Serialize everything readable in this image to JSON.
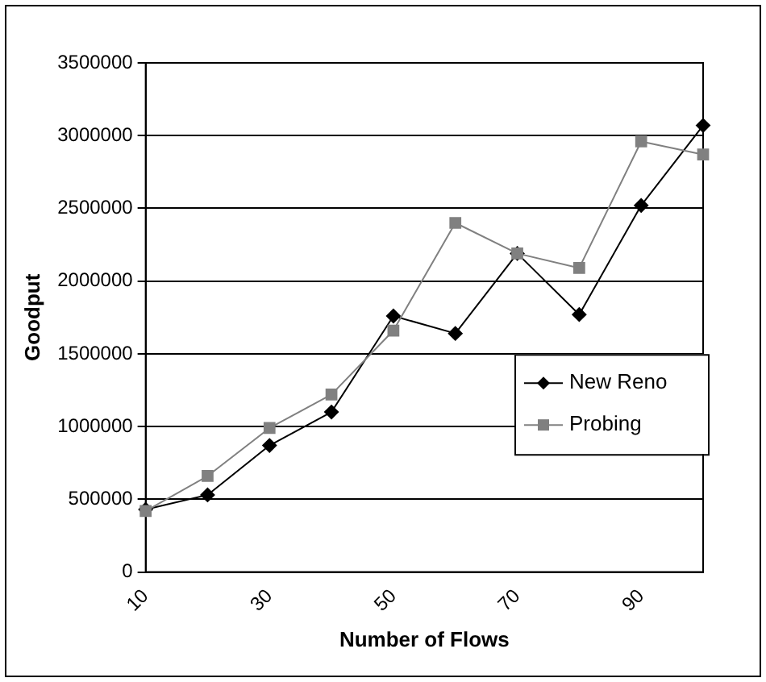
{
  "chart_data": {
    "type": "line",
    "xlabel": "Number of Flows",
    "ylabel": "Goodput",
    "categories": [
      "10",
      null,
      "30",
      null,
      "50",
      null,
      "70",
      null,
      "90",
      null
    ],
    "series": [
      {
        "name": "New Reno",
        "color": "#000000",
        "marker": "diamond",
        "values": [
          430000,
          530000,
          870000,
          1100000,
          1760000,
          1640000,
          2190000,
          1770000,
          2520000,
          3070000
        ]
      },
      {
        "name": "Probing",
        "color": "#808080",
        "marker": "square",
        "values": [
          420000,
          660000,
          990000,
          1220000,
          1660000,
          2400000,
          2190000,
          2090000,
          2960000,
          2870000
        ]
      }
    ],
    "ylim": [
      0,
      3500000
    ],
    "yticks": [
      0,
      500000,
      1000000,
      1500000,
      2000000,
      2500000,
      3000000,
      3500000
    ],
    "grid": "y",
    "legend": "right"
  }
}
